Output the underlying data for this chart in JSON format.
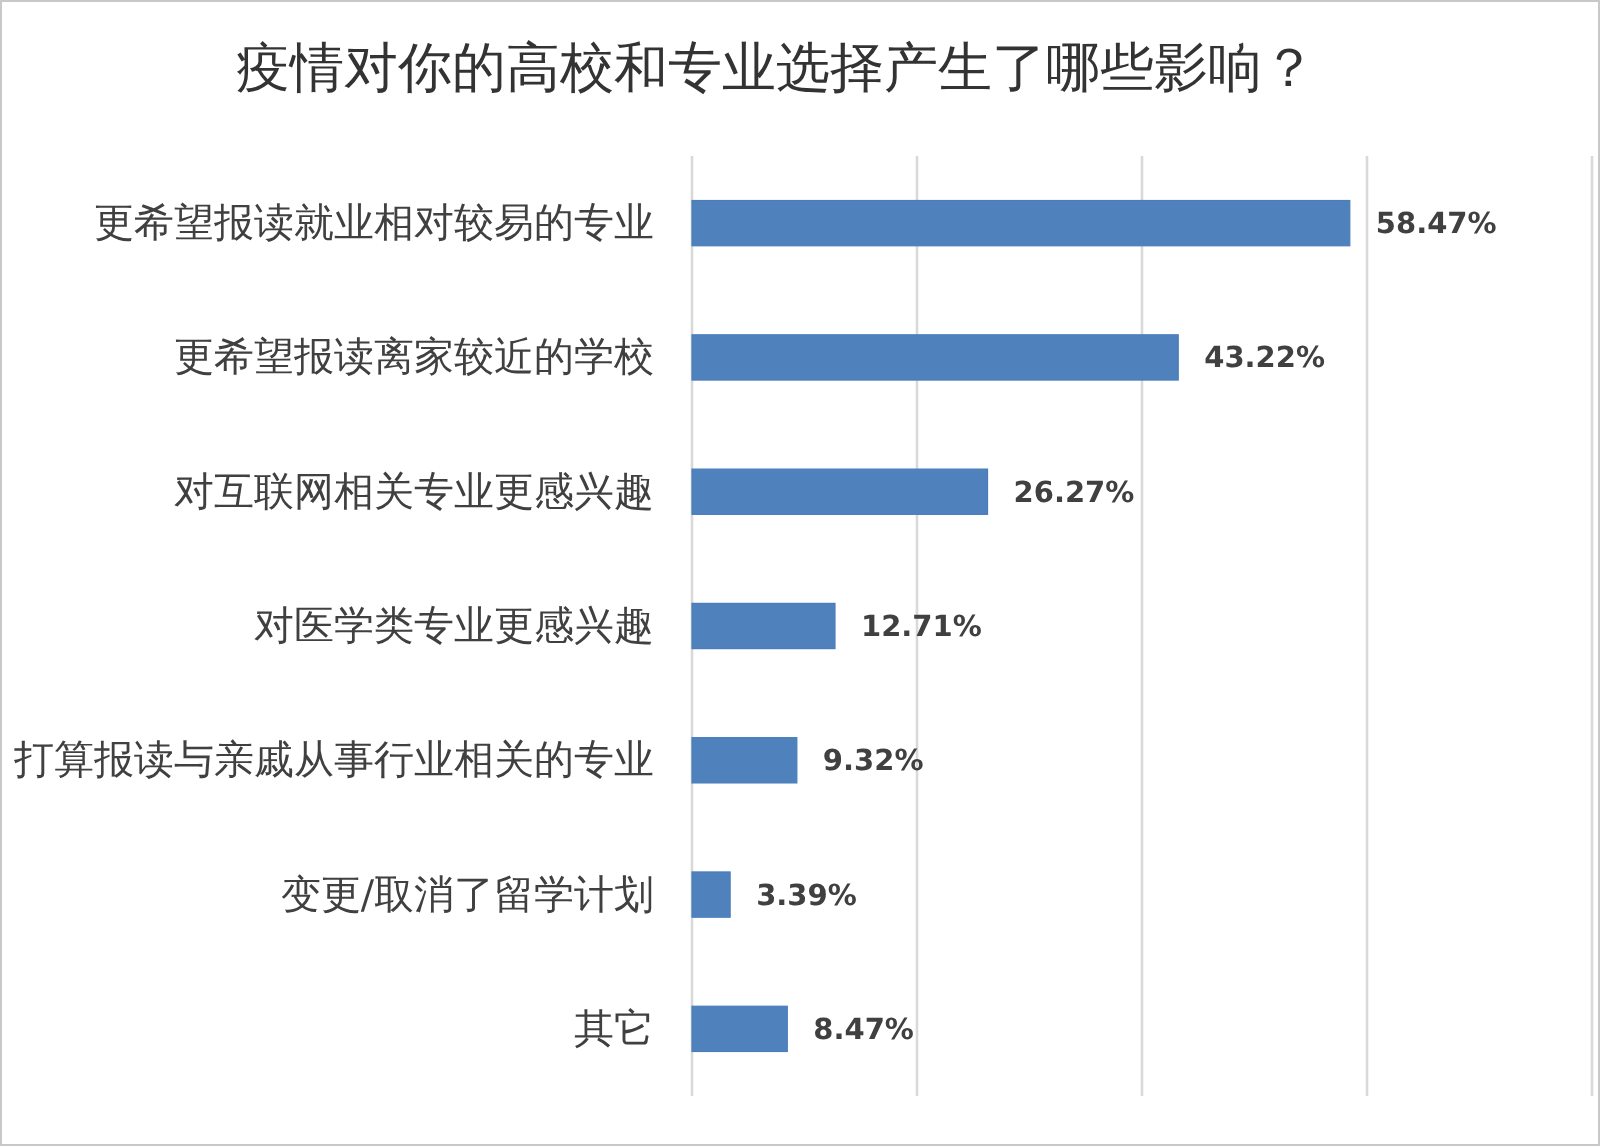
{
  "chart_data": {
    "type": "bar",
    "orientation": "horizontal",
    "title": "疫情对你的高校和专业选择产生了哪些影响？",
    "categories": [
      "更希望报读就业相对较易的专业",
      "更希望报读离家较近的学校",
      "对互联网相关专业更感兴趣",
      "对医学类专业更感兴趣",
      "打算报读与亲戚从事行业相关的专业",
      "变更/取消了留学计划",
      "其它"
    ],
    "values": [
      58.47,
      43.22,
      26.27,
      12.71,
      9.32,
      3.39,
      8.47
    ],
    "value_labels": [
      "58.47%",
      "43.22%",
      "26.27%",
      "12.71%",
      "9.32%",
      "3.39%",
      "8.47%"
    ],
    "color": "#4f81bd",
    "xlim": [
      0,
      80
    ],
    "xticks": [
      {
        "value": 0,
        "label": null
      },
      {
        "value": 20,
        "label": null
      },
      {
        "value": 40,
        "label": null
      },
      {
        "value": 60,
        "label": null
      },
      {
        "value": 80,
        "label": null
      }
    ],
    "grid": "x",
    "tick_labels": "y"
  }
}
